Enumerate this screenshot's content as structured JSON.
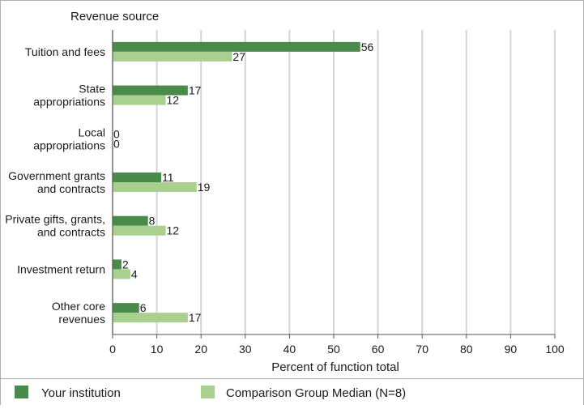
{
  "chart_data": {
    "type": "bar",
    "orientation": "horizontal",
    "title": "Revenue source",
    "xlabel": "Percent of function total",
    "xlim": [
      0,
      100
    ],
    "xticks": [
      0,
      10,
      20,
      30,
      40,
      50,
      60,
      70,
      80,
      90,
      100
    ],
    "grid": true,
    "legend_placement": "bottom",
    "categories": [
      "Tuition and fees",
      "State\nappropriations",
      "Local\nappropriations",
      "Government grants\nand contracts",
      "Private gifts, grants,\nand contracts",
      "Investment return",
      "Other core\nrevenues"
    ],
    "series": [
      {
        "name": "Your institution",
        "color": "#4a8a4a",
        "values": [
          56,
          17,
          0,
          11,
          8,
          2,
          6
        ]
      },
      {
        "name": "Comparison Group Median (N=8)",
        "color": "#a9d08e",
        "values": [
          27,
          12,
          0,
          19,
          12,
          4,
          17
        ]
      }
    ]
  },
  "colors": {
    "gridline": "#d4d4d4",
    "axis": "#555555",
    "border": "#b0b0b0"
  }
}
